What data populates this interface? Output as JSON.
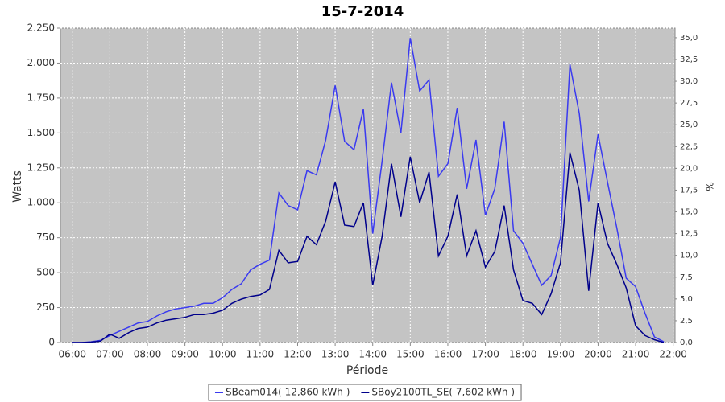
{
  "chart_data": {
    "type": "line",
    "title": "15-7-2014",
    "x_label": "Période",
    "y_label": "Watts",
    "y2_label": "%",
    "x": [
      "06:00",
      "06:15",
      "06:30",
      "06:45",
      "07:00",
      "07:15",
      "07:30",
      "07:45",
      "08:00",
      "08:15",
      "08:30",
      "08:45",
      "09:00",
      "09:15",
      "09:30",
      "09:45",
      "10:00",
      "10:15",
      "10:30",
      "10:45",
      "11:00",
      "11:15",
      "11:30",
      "11:45",
      "12:00",
      "12:15",
      "12:30",
      "12:45",
      "13:00",
      "13:15",
      "13:30",
      "13:45",
      "14:00",
      "14:15",
      "14:30",
      "14:45",
      "15:00",
      "15:15",
      "15:30",
      "15:45",
      "16:00",
      "16:15",
      "16:30",
      "16:45",
      "17:00",
      "17:15",
      "17:30",
      "17:45",
      "18:00",
      "18:15",
      "18:30",
      "18:45",
      "19:00",
      "19:15",
      "19:30",
      "19:45",
      "20:00",
      "20:15",
      "20:30",
      "20:45",
      "21:00",
      "21:15",
      "21:30",
      "21:45"
    ],
    "series": [
      {
        "name": "SBeam014( 12,860 kWh )",
        "color": "#3a3af0",
        "values": [
          0,
          0,
          5,
          15,
          50,
          80,
          110,
          140,
          150,
          190,
          220,
          240,
          250,
          260,
          280,
          280,
          320,
          380,
          420,
          520,
          560,
          590,
          1070,
          980,
          950,
          1230,
          1200,
          1450,
          1840,
          1440,
          1380,
          1670,
          780,
          1300,
          1860,
          1500,
          2180,
          1800,
          1880,
          1190,
          1280,
          1680,
          1100,
          1450,
          910,
          1100,
          1580,
          800,
          710,
          560,
          410,
          480,
          750,
          1990,
          1640,
          1010,
          1490,
          1150,
          820,
          460,
          400,
          210,
          40,
          5
        ]
      },
      {
        "name": "SBoy2100TL_SE( 7,602 kWh )",
        "color": "#00008b",
        "values": [
          0,
          0,
          3,
          10,
          60,
          30,
          70,
          100,
          110,
          140,
          160,
          170,
          180,
          200,
          200,
          210,
          230,
          280,
          310,
          330,
          340,
          380,
          660,
          570,
          580,
          760,
          700,
          870,
          1150,
          840,
          830,
          1000,
          410,
          760,
          1280,
          900,
          1330,
          1000,
          1220,
          620,
          760,
          1060,
          620,
          800,
          540,
          650,
          980,
          520,
          300,
          280,
          200,
          350,
          570,
          1360,
          1090,
          370,
          1000,
          710,
          560,
          390,
          120,
          50,
          20,
          0
        ]
      }
    ],
    "xlim": [
      "05:41",
      "22:03"
    ],
    "xticks": [
      "06:00",
      "07:00",
      "08:00",
      "09:00",
      "10:00",
      "11:00",
      "12:00",
      "13:00",
      "14:00",
      "15:00",
      "16:00",
      "17:00",
      "18:00",
      "19:00",
      "20:00",
      "21:00",
      "22:00"
    ],
    "ylim": [
      0,
      2250
    ],
    "yticks": [
      0,
      250,
      500,
      750,
      {
        "value": 1000,
        "label": "1.000"
      },
      {
        "value": 1250,
        "label": "1.250"
      },
      {
        "value": 1500,
        "label": "1.500"
      },
      {
        "value": 1750,
        "label": "1.750"
      },
      {
        "value": 2000,
        "label": "2.000"
      },
      {
        "value": 2250,
        "label": "2.250"
      }
    ],
    "y2lim": [
      0,
      36.1
    ],
    "y2ticks": [
      {
        "value": 0,
        "label": "0,0"
      },
      {
        "value": 2.5,
        "label": "2,5"
      },
      {
        "value": 5,
        "label": "5,0"
      },
      {
        "value": 7.5,
        "label": "7,5"
      },
      {
        "value": 10,
        "label": "10,0"
      },
      {
        "value": 12.5,
        "label": "12,5"
      },
      {
        "value": 15,
        "label": "15,0"
      },
      {
        "value": 17.5,
        "label": "17,5"
      },
      {
        "value": 20,
        "label": "20,0"
      },
      {
        "value": 22.5,
        "label": "22,5"
      },
      {
        "value": 25,
        "label": "25,0"
      },
      {
        "value": 27.5,
        "label": "27,5"
      },
      {
        "value": 30,
        "label": "30,0"
      },
      {
        "value": 32.5,
        "label": "32,5"
      },
      {
        "value": 35,
        "label": "35,0"
      }
    ],
    "grid": true,
    "plot_background": "#c4c4c4",
    "legend": "bottom"
  }
}
